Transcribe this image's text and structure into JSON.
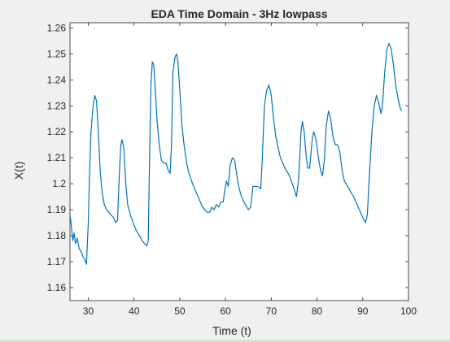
{
  "chart_data": {
    "type": "line",
    "title": "EDA Time Domain - 3Hz lowpass",
    "xlabel": "Time (t)",
    "ylabel": "X(t)",
    "xlim": [
      26,
      100
    ],
    "ylim": [
      1.155,
      1.262
    ],
    "x_ticks": [
      30,
      40,
      50,
      60,
      70,
      80,
      90,
      100
    ],
    "x_tick_labels": [
      "30",
      "40",
      "50",
      "60",
      "70",
      "80",
      "90",
      "100"
    ],
    "y_ticks": [
      1.16,
      1.17,
      1.18,
      1.19,
      1.2,
      1.21,
      1.22,
      1.23,
      1.24,
      1.25,
      1.26
    ],
    "y_tick_labels": [
      "1.16",
      "1.17",
      "1.18",
      "1.19",
      "1.2",
      "1.21",
      "1.22",
      "1.23",
      "1.24",
      "1.25",
      "1.26"
    ],
    "grid": false,
    "series_color": "#0072bd",
    "series": [
      {
        "points": [
          [
            26.0,
            1.188
          ],
          [
            26.3,
            1.184
          ],
          [
            26.6,
            1.178
          ],
          [
            26.9,
            1.181
          ],
          [
            27.2,
            1.177
          ],
          [
            27.6,
            1.179
          ],
          [
            28.0,
            1.175
          ],
          [
            28.4,
            1.174
          ],
          [
            28.8,
            1.172
          ],
          [
            29.2,
            1.171
          ],
          [
            29.6,
            1.169
          ],
          [
            30.0,
            1.185
          ],
          [
            30.3,
            1.205
          ],
          [
            30.6,
            1.22
          ],
          [
            31.0,
            1.229
          ],
          [
            31.4,
            1.234
          ],
          [
            31.8,
            1.232
          ],
          [
            32.2,
            1.22
          ],
          [
            32.6,
            1.205
          ],
          [
            33.0,
            1.197
          ],
          [
            33.5,
            1.192
          ],
          [
            34.0,
            1.19
          ],
          [
            34.5,
            1.189
          ],
          [
            35.0,
            1.188
          ],
          [
            35.5,
            1.187
          ],
          [
            36.0,
            1.185
          ],
          [
            36.4,
            1.186
          ],
          [
            36.7,
            1.2
          ],
          [
            37.1,
            1.215
          ],
          [
            37.4,
            1.217
          ],
          [
            37.8,
            1.213
          ],
          [
            38.2,
            1.2
          ],
          [
            38.6,
            1.192
          ],
          [
            39.2,
            1.188
          ],
          [
            39.8,
            1.185
          ],
          [
            40.5,
            1.182
          ],
          [
            41.2,
            1.18
          ],
          [
            41.8,
            1.178
          ],
          [
            42.3,
            1.177
          ],
          [
            42.8,
            1.176
          ],
          [
            43.1,
            1.178
          ],
          [
            43.4,
            1.21
          ],
          [
            43.7,
            1.238
          ],
          [
            44.0,
            1.247
          ],
          [
            44.3,
            1.246
          ],
          [
            44.6,
            1.238
          ],
          [
            45.0,
            1.225
          ],
          [
            45.5,
            1.215
          ],
          [
            46.0,
            1.209
          ],
          [
            46.5,
            1.208
          ],
          [
            47.0,
            1.208
          ],
          [
            47.5,
            1.205
          ],
          [
            47.9,
            1.204
          ],
          [
            48.2,
            1.215
          ],
          [
            48.5,
            1.243
          ],
          [
            49.0,
            1.249
          ],
          [
            49.3,
            1.25
          ],
          [
            49.6,
            1.247
          ],
          [
            50.0,
            1.236
          ],
          [
            50.5,
            1.222
          ],
          [
            51.0,
            1.214
          ],
          [
            51.5,
            1.208
          ],
          [
            52.0,
            1.204
          ],
          [
            53.0,
            1.199
          ],
          [
            54.0,
            1.195
          ],
          [
            55.0,
            1.191
          ],
          [
            56.0,
            1.189
          ],
          [
            56.5,
            1.189
          ],
          [
            57.0,
            1.191
          ],
          [
            57.5,
            1.19
          ],
          [
            58.0,
            1.192
          ],
          [
            58.5,
            1.191
          ],
          [
            59.0,
            1.193
          ],
          [
            59.5,
            1.193
          ],
          [
            59.8,
            1.197
          ],
          [
            60.2,
            1.201
          ],
          [
            60.6,
            1.199
          ],
          [
            61.0,
            1.207
          ],
          [
            61.5,
            1.21
          ],
          [
            62.0,
            1.209
          ],
          [
            62.5,
            1.203
          ],
          [
            63.0,
            1.198
          ],
          [
            63.5,
            1.195
          ],
          [
            64.0,
            1.193
          ],
          [
            65.0,
            1.19
          ],
          [
            65.5,
            1.191
          ],
          [
            66.0,
            1.199
          ],
          [
            67.0,
            1.199
          ],
          [
            67.7,
            1.198
          ],
          [
            68.0,
            1.208
          ],
          [
            68.5,
            1.23
          ],
          [
            69.0,
            1.236
          ],
          [
            69.5,
            1.238
          ],
          [
            70.0,
            1.234
          ],
          [
            70.5,
            1.225
          ],
          [
            71.0,
            1.218
          ],
          [
            72.0,
            1.21
          ],
          [
            73.0,
            1.206
          ],
          [
            74.0,
            1.203
          ],
          [
            75.0,
            1.198
          ],
          [
            75.5,
            1.195
          ],
          [
            76.0,
            1.202
          ],
          [
            76.5,
            1.22
          ],
          [
            76.8,
            1.224
          ],
          [
            77.2,
            1.22
          ],
          [
            77.6,
            1.211
          ],
          [
            78.0,
            1.206
          ],
          [
            78.4,
            1.206
          ],
          [
            78.7,
            1.212
          ],
          [
            79.0,
            1.218
          ],
          [
            79.3,
            1.22
          ],
          [
            79.8,
            1.217
          ],
          [
            80.3,
            1.21
          ],
          [
            80.8,
            1.205
          ],
          [
            81.2,
            1.203
          ],
          [
            81.6,
            1.209
          ],
          [
            82.0,
            1.222
          ],
          [
            82.5,
            1.228
          ],
          [
            83.0,
            1.225
          ],
          [
            83.5,
            1.218
          ],
          [
            84.0,
            1.215
          ],
          [
            84.5,
            1.215
          ],
          [
            85.0,
            1.212
          ],
          [
            85.5,
            1.205
          ],
          [
            86.0,
            1.201
          ],
          [
            87.0,
            1.198
          ],
          [
            88.0,
            1.195
          ],
          [
            89.0,
            1.191
          ],
          [
            90.0,
            1.187
          ],
          [
            90.6,
            1.185
          ],
          [
            91.0,
            1.188
          ],
          [
            91.5,
            1.205
          ],
          [
            92.0,
            1.22
          ],
          [
            92.5,
            1.23
          ],
          [
            93.0,
            1.234
          ],
          [
            93.5,
            1.231
          ],
          [
            94.0,
            1.227
          ],
          [
            94.3,
            1.23
          ],
          [
            94.8,
            1.243
          ],
          [
            95.3,
            1.252
          ],
          [
            95.7,
            1.254
          ],
          [
            96.2,
            1.252
          ],
          [
            96.7,
            1.246
          ],
          [
            97.2,
            1.238
          ],
          [
            97.7,
            1.233
          ],
          [
            98.2,
            1.229
          ],
          [
            98.5,
            1.228
          ]
        ]
      }
    ]
  }
}
